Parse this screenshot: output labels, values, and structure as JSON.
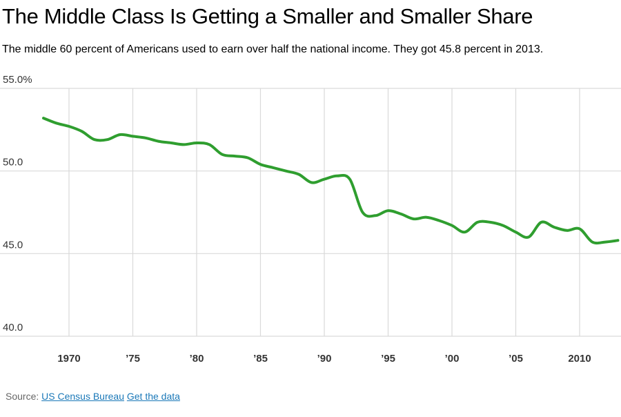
{
  "header": {
    "title": "The Middle Class Is Getting a Smaller and Smaller Share",
    "subtitle": "The middle 60 percent of Americans used to earn over half the national income. They got 45.8 percent in 2013."
  },
  "footer": {
    "source_label": "Source:",
    "source_link": "US Census Bureau",
    "data_link": "Get the data"
  },
  "colors": {
    "line": "#2f9e2f",
    "grid": "#d9d9d9",
    "text": "#333333"
  },
  "chart_data": {
    "type": "line",
    "title": "The Middle Class Is Getting a Smaller and Smaller Share",
    "subtitle": "The middle 60 percent of Americans used to earn over half the national income. They got 45.8 percent in 2013.",
    "xlim": [
      1967,
      2013
    ],
    "ylim": [
      40,
      55
    ],
    "grid": true,
    "y_ticks": [
      {
        "value": 55,
        "label": "55.0%"
      },
      {
        "value": 50,
        "label": "50.0"
      },
      {
        "value": 45,
        "label": "45.0"
      },
      {
        "value": 40,
        "label": "40.0"
      }
    ],
    "x_ticks": [
      {
        "value": 1970,
        "label": "1970"
      },
      {
        "value": 1975,
        "label": "’75"
      },
      {
        "value": 1980,
        "label": "’80"
      },
      {
        "value": 1985,
        "label": "’85"
      },
      {
        "value": 1990,
        "label": "’90"
      },
      {
        "value": 1995,
        "label": "’95"
      },
      {
        "value": 2000,
        "label": "’00"
      },
      {
        "value": 2005,
        "label": "’05"
      },
      {
        "value": 2010,
        "label": "2010"
      }
    ],
    "series": [
      {
        "x": [
          1968,
          1969,
          1970,
          1971,
          1972,
          1973,
          1974,
          1975,
          1976,
          1977,
          1978,
          1979,
          1980,
          1981,
          1982,
          1983,
          1984,
          1985,
          1986,
          1987,
          1988,
          1989,
          1990,
          1991,
          1992,
          1993,
          1994,
          1995,
          1996,
          1997,
          1998,
          1999,
          2000,
          2001,
          2002,
          2003,
          2004,
          2005,
          2006,
          2007,
          2008,
          2009,
          2010,
          2011,
          2012,
          2013
        ],
        "values": [
          53.2,
          52.9,
          52.7,
          52.4,
          51.9,
          51.9,
          52.2,
          52.1,
          52.0,
          51.8,
          51.7,
          51.6,
          51.7,
          51.6,
          51.0,
          50.9,
          50.8,
          50.4,
          50.2,
          50.0,
          49.8,
          49.3,
          49.5,
          49.7,
          49.5,
          47.5,
          47.3,
          47.6,
          47.4,
          47.1,
          47.2,
          47.0,
          46.7,
          46.3,
          46.9,
          46.9,
          46.7,
          46.3,
          46.0,
          46.9,
          46.6,
          46.4,
          46.5,
          45.7,
          45.7,
          45.8
        ]
      }
    ]
  }
}
